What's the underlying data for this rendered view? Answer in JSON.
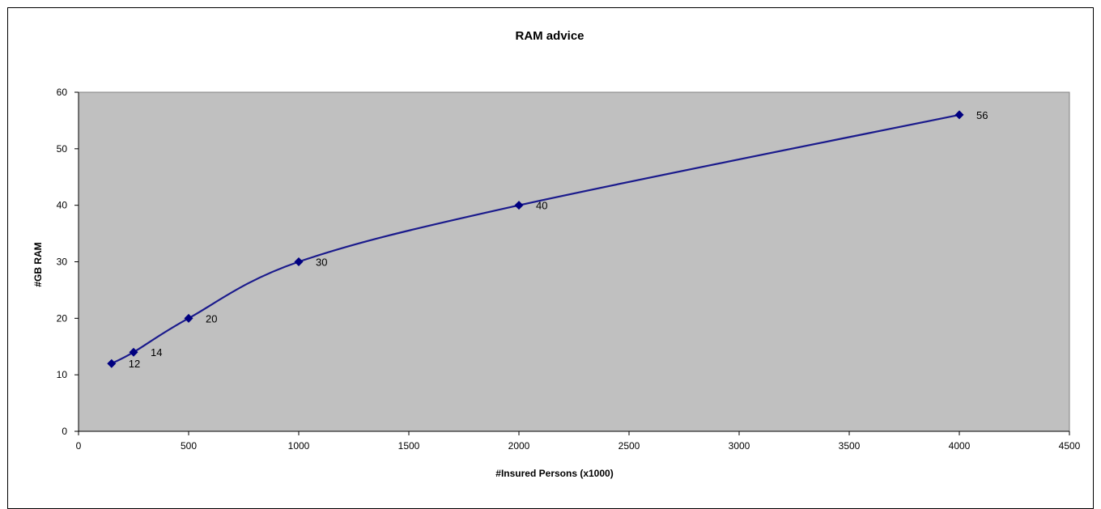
{
  "chart_data": {
    "type": "line",
    "title": "RAM advice",
    "xlabel": "#Insured Persons (x1000)",
    "ylabel": "#GB RAM",
    "xlim": [
      0,
      4500
    ],
    "ylim": [
      0,
      60
    ],
    "x_ticks": [
      0,
      500,
      1000,
      1500,
      2000,
      2500,
      3000,
      3500,
      4000,
      4500
    ],
    "y_ticks": [
      0,
      10,
      20,
      30,
      40,
      50,
      60
    ],
    "grid": false,
    "smooth": true,
    "marker": "diamond",
    "series": [
      {
        "x": [
          150,
          250,
          500,
          1000,
          2000,
          4000
        ],
        "y": [
          12,
          14,
          20,
          30,
          40,
          56
        ],
        "labels": [
          "12",
          "14",
          "20",
          "30",
          "40",
          "56"
        ]
      }
    ],
    "colors": {
      "line": "#1a1a8c",
      "marker": "#000080",
      "plot_background": "#c0c0c0",
      "plot_border": "#808080"
    }
  }
}
